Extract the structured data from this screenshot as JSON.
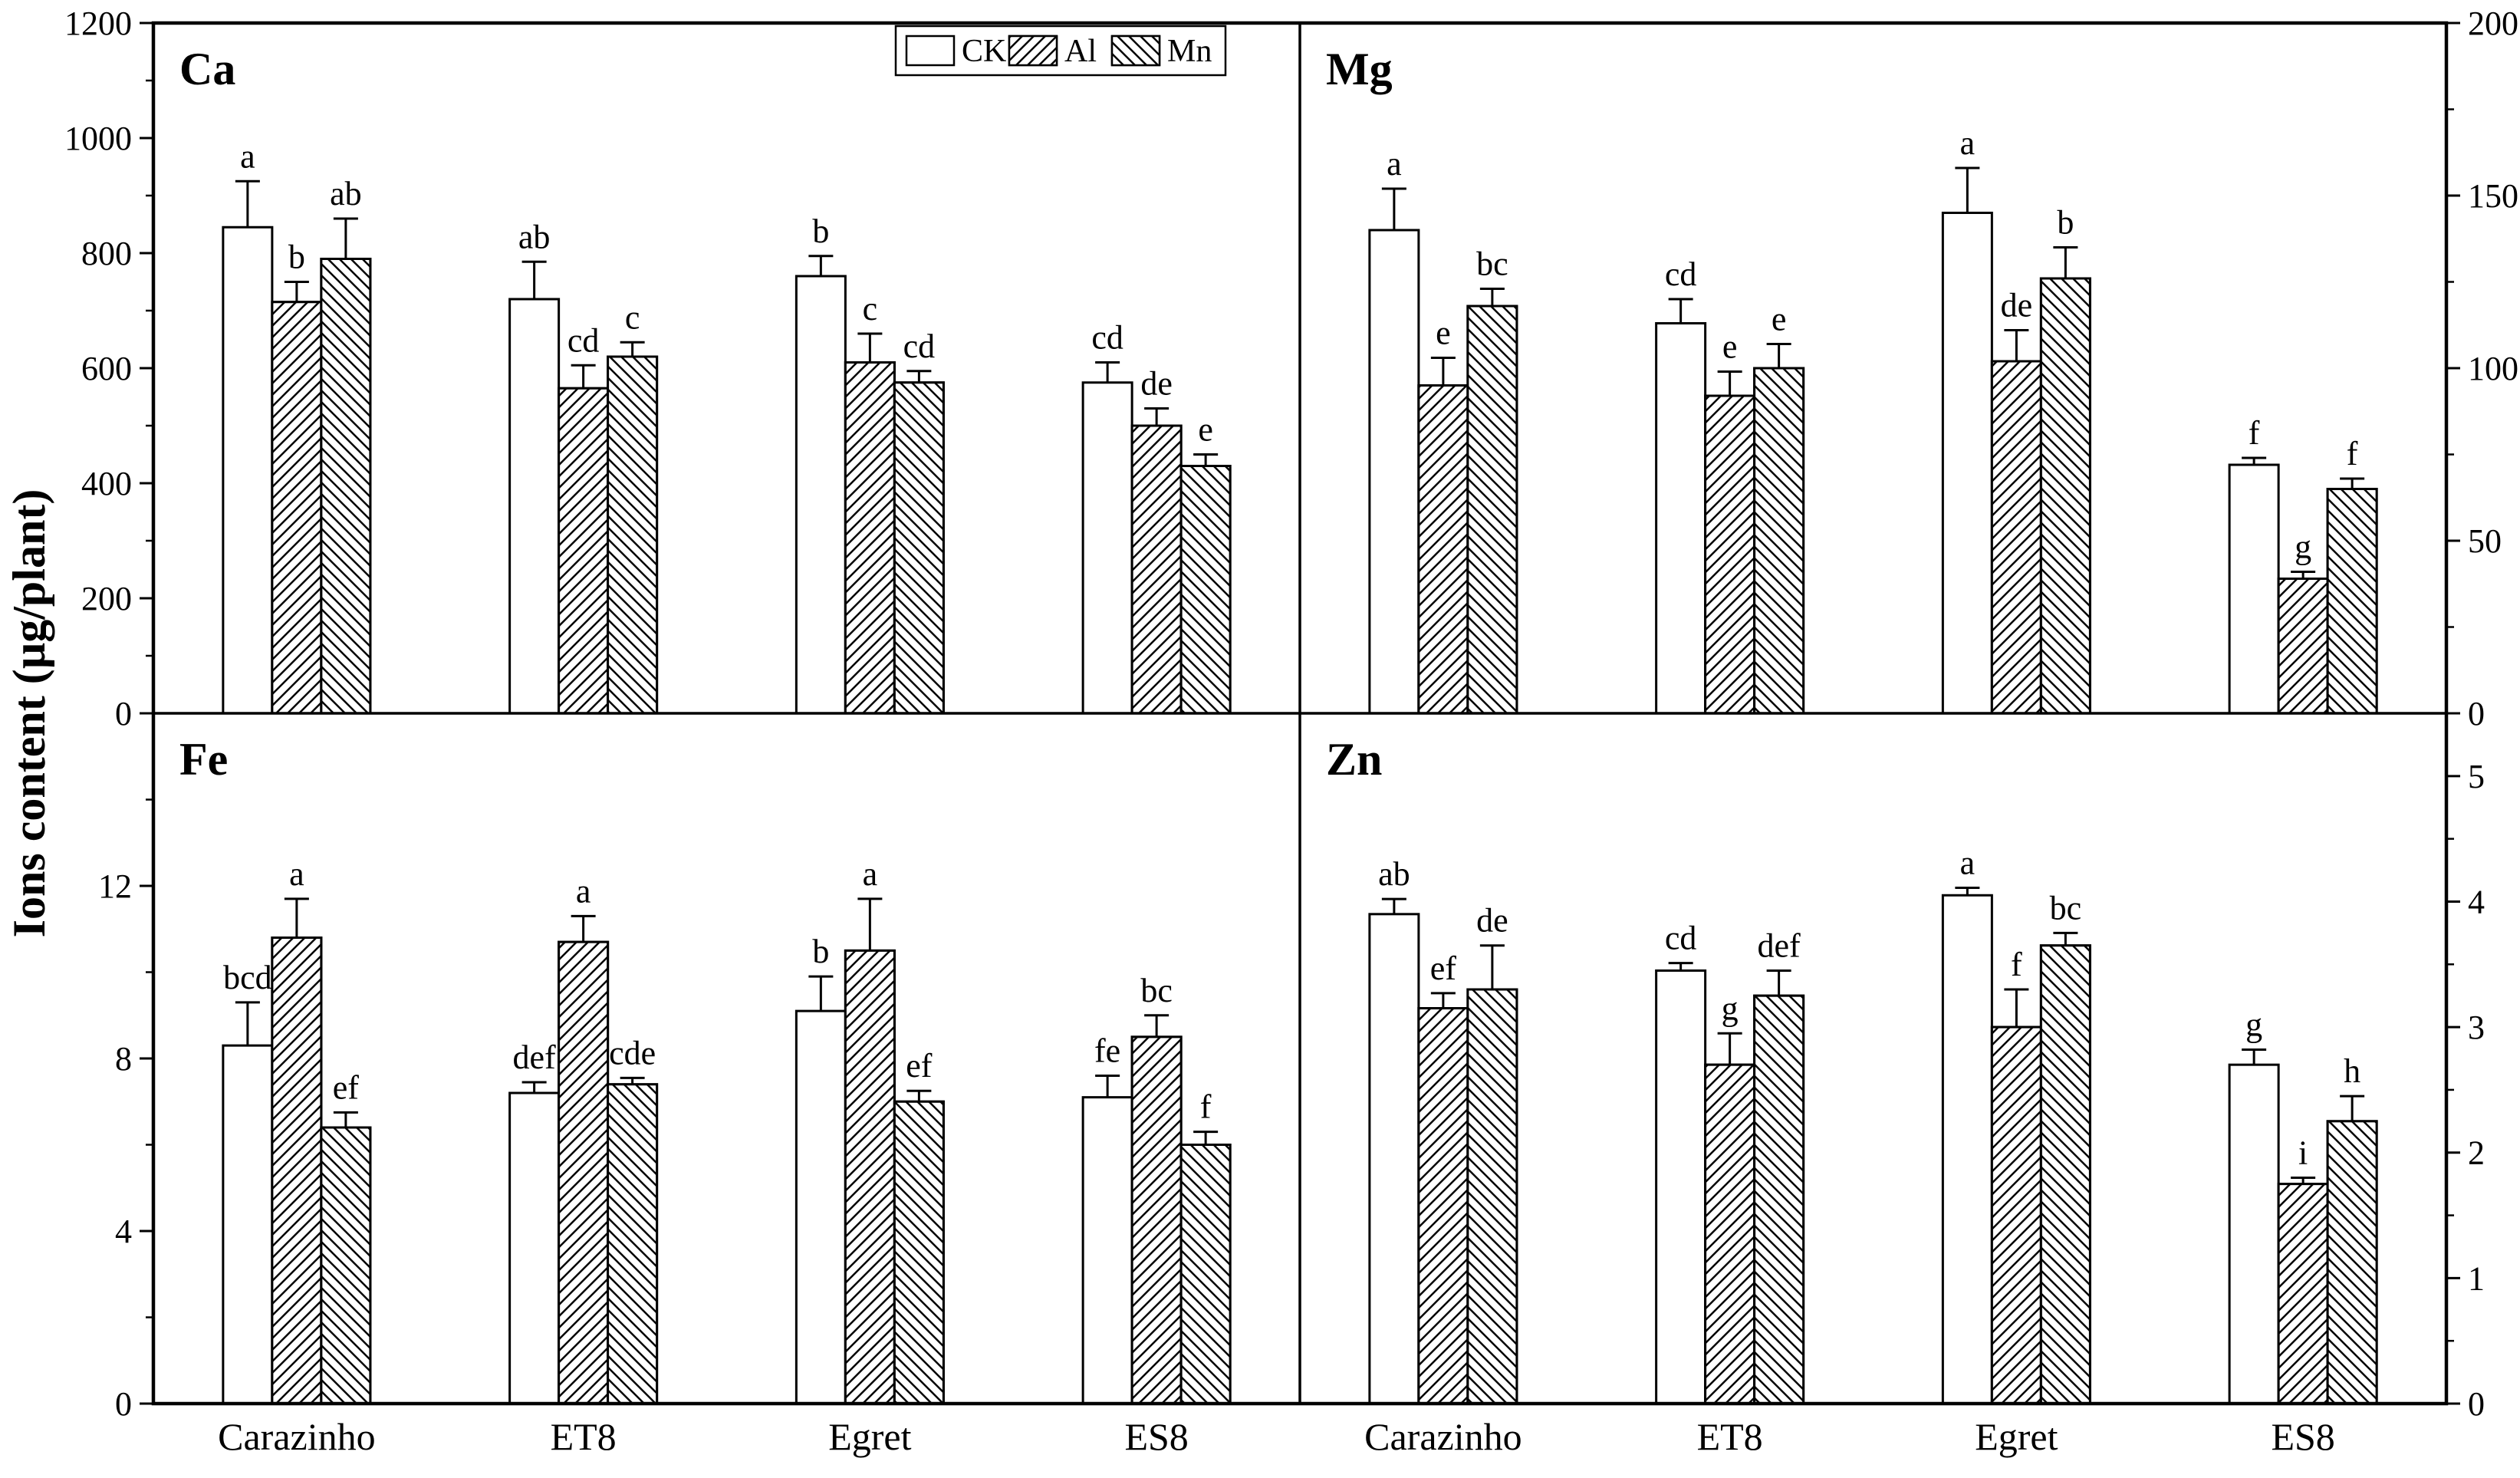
{
  "figure": {
    "y_axis_label": "Ions content (µg/plant)",
    "x_categories": [
      "Carazinho",
      "ET8",
      "Egret",
      "ES8"
    ],
    "legend": [
      {
        "label": "CK",
        "pattern": "none"
      },
      {
        "label": "Al",
        "pattern": "forward-hatch"
      },
      {
        "label": "Mn",
        "pattern": "back-hatch"
      }
    ],
    "colors": {
      "foreground": "#000000",
      "background": "#ffffff"
    }
  },
  "chart_data": [
    {
      "type": "bar",
      "title": "Ca",
      "position": "top-left",
      "axis_labels_side": "left",
      "ylim": [
        0,
        1200
      ],
      "yticks_major": [
        0,
        200,
        400,
        600,
        800,
        1000,
        1200
      ],
      "ytick_minor_step": 100,
      "categories": [
        "Carazinho",
        "ET8",
        "Egret",
        "ES8"
      ],
      "series": [
        {
          "name": "CK",
          "values": [
            845,
            720,
            760,
            575
          ],
          "errors": [
            80,
            65,
            35,
            35
          ],
          "letters": [
            "a",
            "ab",
            "b",
            "cd"
          ]
        },
        {
          "name": "Al",
          "values": [
            715,
            565,
            610,
            500
          ],
          "errors": [
            35,
            40,
            50,
            30
          ],
          "letters": [
            "b",
            "cd",
            "c",
            "de"
          ]
        },
        {
          "name": "Mn",
          "values": [
            790,
            620,
            575,
            430
          ],
          "errors": [
            70,
            25,
            20,
            20
          ],
          "letters": [
            "ab",
            "c",
            "cd",
            "e"
          ]
        }
      ]
    },
    {
      "type": "bar",
      "title": "Mg",
      "position": "top-right",
      "axis_labels_side": "right",
      "ylim": [
        0,
        200
      ],
      "yticks_major": [
        0,
        50,
        100,
        150,
        200
      ],
      "ytick_minor_step": 25,
      "categories": [
        "Carazinho",
        "ET8",
        "Egret",
        "ES8"
      ],
      "series": [
        {
          "name": "CK",
          "values": [
            140,
            113,
            145,
            72
          ],
          "errors": [
            12,
            7,
            13,
            2
          ],
          "letters": [
            "a",
            "cd",
            "a",
            "f"
          ]
        },
        {
          "name": "Al",
          "values": [
            95,
            92,
            102,
            39
          ],
          "errors": [
            8,
            7,
            9,
            2
          ],
          "letters": [
            "e",
            "e",
            "de",
            "g"
          ]
        },
        {
          "name": "Mn",
          "values": [
            118,
            100,
            126,
            65
          ],
          "errors": [
            5,
            7,
            9,
            3
          ],
          "letters": [
            "bc",
            "e",
            "b",
            "f"
          ]
        }
      ]
    },
    {
      "type": "bar",
      "title": "Fe",
      "position": "bottom-left",
      "axis_labels_side": "left",
      "ylim": [
        0,
        16
      ],
      "yticks_major": [
        0,
        4,
        8,
        12
      ],
      "ytick_minor_step": 2,
      "categories": [
        "Carazinho",
        "ET8",
        "Egret",
        "ES8"
      ],
      "series": [
        {
          "name": "CK",
          "values": [
            8.3,
            7.2,
            9.1,
            7.1
          ],
          "errors": [
            1.0,
            0.25,
            0.8,
            0.5
          ],
          "letters": [
            "bcd",
            "def",
            "b",
            "fe"
          ]
        },
        {
          "name": "Al",
          "values": [
            10.8,
            10.7,
            10.5,
            8.5
          ],
          "errors": [
            0.9,
            0.6,
            1.2,
            0.5
          ],
          "letters": [
            "a",
            "a",
            "a",
            "bc"
          ]
        },
        {
          "name": "Mn",
          "values": [
            6.4,
            7.4,
            7.0,
            6.0
          ],
          "errors": [
            0.35,
            0.15,
            0.25,
            0.3
          ],
          "letters": [
            "ef",
            "cde",
            "ef",
            "f"
          ]
        }
      ]
    },
    {
      "type": "bar",
      "title": "Zn",
      "position": "bottom-right",
      "axis_labels_side": "right",
      "ylim": [
        0,
        5.5
      ],
      "yticks_major": [
        0,
        1,
        2,
        3,
        4,
        5
      ],
      "ytick_minor_step": 0.5,
      "categories": [
        "Carazinho",
        "ET8",
        "Egret",
        "ES8"
      ],
      "series": [
        {
          "name": "CK",
          "values": [
            3.9,
            3.45,
            4.05,
            2.7
          ],
          "errors": [
            0.12,
            0.06,
            0.06,
            0.12
          ],
          "letters": [
            "ab",
            "cd",
            "a",
            "g"
          ]
        },
        {
          "name": "Al",
          "values": [
            3.15,
            2.7,
            3.0,
            1.75
          ],
          "errors": [
            0.12,
            0.25,
            0.3,
            0.05
          ],
          "letters": [
            "ef",
            "g",
            "f",
            "i"
          ]
        },
        {
          "name": "Mn",
          "values": [
            3.3,
            3.25,
            3.65,
            2.25
          ],
          "errors": [
            0.35,
            0.2,
            0.1,
            0.2
          ],
          "letters": [
            "de",
            "def",
            "bc",
            "h"
          ]
        }
      ]
    }
  ]
}
